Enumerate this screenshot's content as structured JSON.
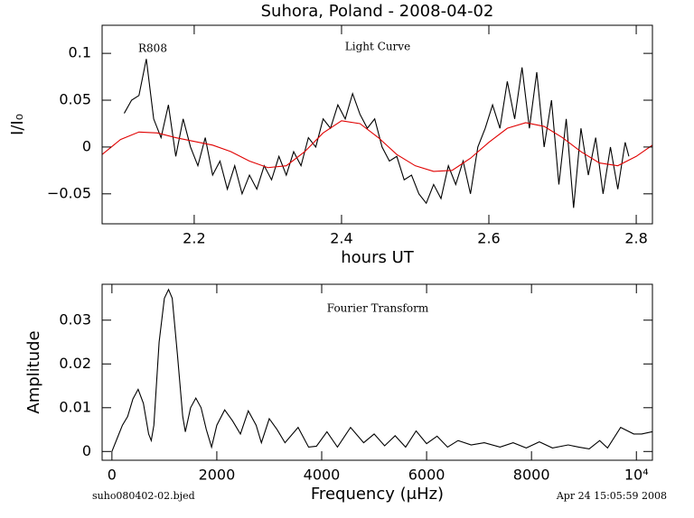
{
  "chart_data": [
    {
      "type": "line",
      "title": "Suhora, Poland  -  2008-04-02",
      "xlabel": "hours UT",
      "ylabel": "I/I₀",
      "annotations": [
        "R808",
        "Light Curve"
      ],
      "xlim": [
        2.075,
        2.822
      ],
      "xticks": [
        2.2,
        2.4,
        2.6,
        2.8
      ],
      "ylim": [
        -0.082,
        0.13
      ],
      "yticks": [
        {
          "value": -0.05,
          "label": "−0.05"
        },
        0,
        0.05,
        0.1
      ],
      "series": [
        {
          "color": "#000000",
          "x": [
            2.105,
            2.115,
            2.125,
            2.135,
            2.145,
            2.155,
            2.165,
            2.175,
            2.185,
            2.195,
            2.205,
            2.215,
            2.225,
            2.235,
            2.245,
            2.255,
            2.265,
            2.275,
            2.285,
            2.295,
            2.305,
            2.315,
            2.325,
            2.335,
            2.345,
            2.355,
            2.365,
            2.375,
            2.385,
            2.395,
            2.405,
            2.415,
            2.425,
            2.435,
            2.445,
            2.455,
            2.465,
            2.475,
            2.485,
            2.495,
            2.505,
            2.515,
            2.525,
            2.535,
            2.545,
            2.555,
            2.565,
            2.575,
            2.585,
            2.595,
            2.605,
            2.615,
            2.625,
            2.635,
            2.645,
            2.655,
            2.665,
            2.675,
            2.685,
            2.695,
            2.705,
            2.715,
            2.725,
            2.735,
            2.745,
            2.755,
            2.765,
            2.775,
            2.785,
            2.79
          ],
          "values": [
            0.036,
            0.05,
            0.055,
            0.094,
            0.03,
            0.01,
            0.045,
            -0.01,
            0.03,
            0.0,
            -0.02,
            0.01,
            -0.03,
            -0.015,
            -0.045,
            -0.02,
            -0.05,
            -0.03,
            -0.045,
            -0.02,
            -0.035,
            -0.01,
            -0.03,
            -0.005,
            -0.02,
            0.01,
            0.0,
            0.03,
            0.02,
            0.045,
            0.03,
            0.057,
            0.035,
            0.02,
            0.03,
            0.0,
            -0.015,
            -0.01,
            -0.035,
            -0.03,
            -0.05,
            -0.06,
            -0.04,
            -0.055,
            -0.02,
            -0.04,
            -0.015,
            -0.05,
            0.0,
            0.02,
            0.045,
            0.02,
            0.07,
            0.03,
            0.085,
            0.02,
            0.08,
            0.0,
            0.05,
            -0.04,
            0.03,
            -0.065,
            0.02,
            -0.03,
            0.01,
            -0.05,
            0.0,
            -0.045,
            0.005,
            -0.01
          ]
        },
        {
          "color": "#e00000",
          "x": [
            2.075,
            2.1,
            2.125,
            2.15,
            2.175,
            2.2,
            2.225,
            2.25,
            2.275,
            2.3,
            2.325,
            2.35,
            2.375,
            2.4,
            2.425,
            2.45,
            2.475,
            2.5,
            2.525,
            2.55,
            2.575,
            2.6,
            2.625,
            2.65,
            2.675,
            2.7,
            2.725,
            2.75,
            2.775,
            2.8,
            2.822
          ],
          "values": [
            -0.008,
            0.008,
            0.016,
            0.015,
            0.01,
            0.006,
            0.002,
            -0.005,
            -0.015,
            -0.022,
            -0.02,
            -0.005,
            0.015,
            0.028,
            0.025,
            0.01,
            -0.008,
            -0.02,
            -0.026,
            -0.025,
            -0.012,
            0.005,
            0.02,
            0.026,
            0.022,
            0.01,
            -0.005,
            -0.017,
            -0.02,
            -0.01,
            0.002
          ]
        }
      ]
    },
    {
      "type": "line",
      "xlabel": "Frequency (μHz)",
      "ylabel": "Amplitude",
      "annotations": [
        "Fourier Transform"
      ],
      "xlim": [
        -187,
        10306
      ],
      "xticks": [
        0,
        2000,
        4000,
        6000,
        8000,
        {
          "value": 10000,
          "label": "10⁴"
        }
      ],
      "ylim": [
        -0.002,
        0.0382
      ],
      "yticks": [
        0,
        0.01,
        0.02,
        0.03
      ],
      "series": [
        {
          "color": "#000000",
          "x": [
            0,
            100,
            200,
            300,
            400,
            500,
            600,
            700,
            750,
            800,
            900,
            1000,
            1080,
            1150,
            1250,
            1350,
            1400,
            1500,
            1600,
            1700,
            1800,
            1900,
            2000,
            2150,
            2300,
            2450,
            2600,
            2750,
            2850,
            3000,
            3150,
            3300,
            3550,
            3750,
            3900,
            4100,
            4300,
            4550,
            4800,
            5000,
            5200,
            5400,
            5600,
            5800,
            6000,
            6200,
            6400,
            6600,
            6850,
            7100,
            7400,
            7650,
            7900,
            8150,
            8400,
            8700,
            8900,
            9100,
            9300,
            9450,
            9700,
            9950,
            10100,
            10300
          ],
          "values": [
            0,
            0.003,
            0.006,
            0.008,
            0.012,
            0.0142,
            0.011,
            0.004,
            0.0025,
            0.006,
            0.025,
            0.035,
            0.037,
            0.035,
            0.022,
            0.008,
            0.0045,
            0.01,
            0.0122,
            0.01,
            0.005,
            0.001,
            0.006,
            0.0095,
            0.007,
            0.004,
            0.0093,
            0.006,
            0.002,
            0.0075,
            0.005,
            0.002,
            0.0055,
            0.001,
            0.0012,
            0.0045,
            0.001,
            0.0055,
            0.002,
            0.004,
            0.0013,
            0.0036,
            0.001,
            0.0047,
            0.0018,
            0.0035,
            0.001,
            0.0025,
            0.0015,
            0.002,
            0.001,
            0.002,
            0.0008,
            0.0022,
            0.0008,
            0.0015,
            0.001,
            0.0006,
            0.0025,
            0.0008,
            0.0055,
            0.004,
            0.004,
            0.0045
          ]
        }
      ]
    }
  ],
  "footer": {
    "left": "suho080402-02.bjed",
    "right": "Apr 24  15:05:59 2008"
  }
}
